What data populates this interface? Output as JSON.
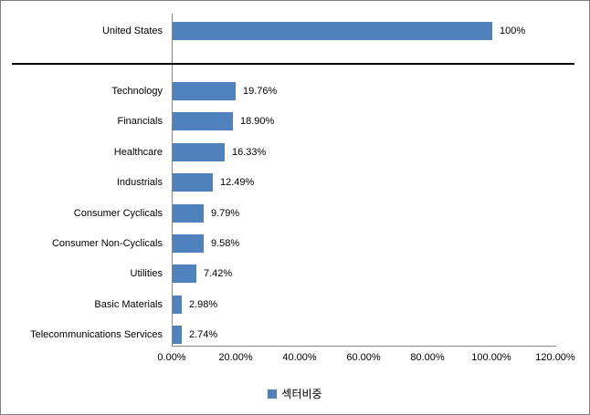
{
  "chart_data": {
    "type": "bar",
    "orientation": "horizontal",
    "title": "",
    "xlabel": "",
    "ylabel": "",
    "xlim": [
      0,
      120
    ],
    "grid": false,
    "bar_color": "#4F81BD",
    "axis_line_color": "#868686",
    "separator_line_color": "#000000",
    "x_ticks": [
      "0.00%",
      "20.00%",
      "40.00%",
      "60.00%",
      "80.00%",
      "100.00%",
      "120.00%"
    ],
    "x_tick_values": [
      0,
      20,
      40,
      60,
      80,
      100,
      120
    ],
    "country_section": {
      "category": "United States",
      "value": 100,
      "value_label": "100%"
    },
    "sector_section": {
      "categories": [
        "Technology",
        "Financials",
        "Healthcare",
        "Industrials",
        "Consumer Cyclicals",
        "Consumer Non-Cyclicals",
        "Utilities",
        "Basic Materials",
        "Telecommunications Services"
      ],
      "values": [
        19.76,
        18.9,
        16.33,
        12.49,
        9.79,
        9.58,
        7.42,
        2.98,
        2.74
      ],
      "value_labels": [
        "19.76%",
        "18.90%",
        "16.33%",
        "12.49%",
        "9.79%",
        "9.58%",
        "7.42%",
        "2.98%",
        "2.74%"
      ]
    },
    "legend": {
      "label": "섹터비중",
      "swatch_color": "#4F81BD",
      "position": "bottom-center"
    }
  }
}
